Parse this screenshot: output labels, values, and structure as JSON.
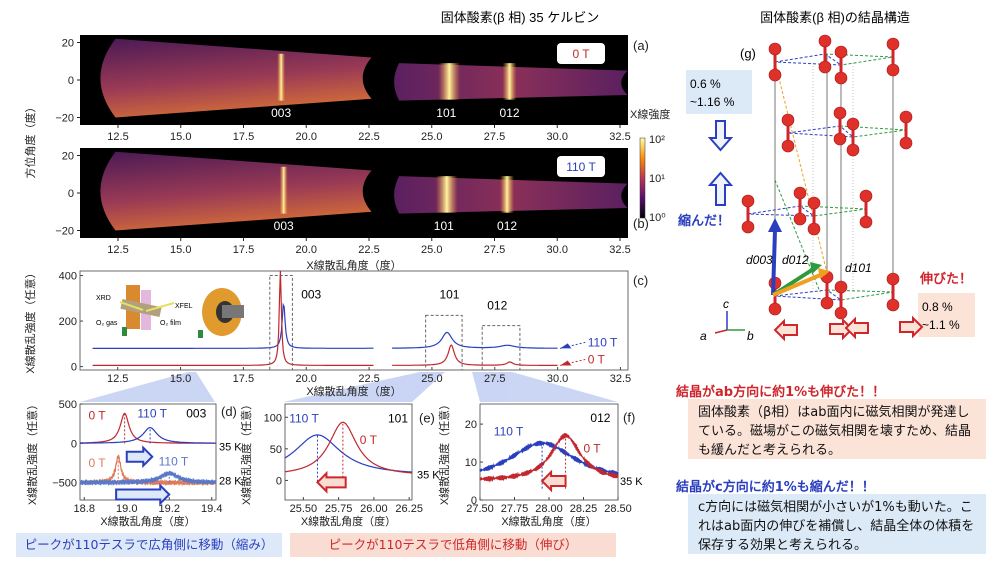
{
  "titles": {
    "left": "固体酸素(β 相) 35 ケルビン",
    "right": "固体酸素(β 相)の結晶構造"
  },
  "heatmap": {
    "y_label": "方位角度（度）",
    "x_label": "X線散乱角度（度）",
    "x_ticks": [
      "12.5",
      "15.0",
      "17.5",
      "20.0",
      "22.5",
      "25.0",
      "27.5",
      "30.0",
      "32.5"
    ],
    "y_ticks": [
      "20",
      "0",
      "−20"
    ],
    "colorbar_label": "X線強度",
    "colorbar_ticks": [
      "10²",
      "10¹",
      "10⁰"
    ],
    "panels": [
      {
        "label": "(a)",
        "field": "0 T",
        "field_color": "#c0282d",
        "peaks": [
          {
            "hkl": "003",
            "x": 19.0
          },
          {
            "hkl": "101",
            "x": 25.7
          },
          {
            "hkl": "012",
            "x": 28.1
          }
        ]
      },
      {
        "label": "(b)",
        "field": "110 T",
        "field_color": "#2a3fbf",
        "peaks": [
          {
            "hkl": "003",
            "x": 19.1
          },
          {
            "hkl": "101",
            "x": 25.6
          },
          {
            "hkl": "012",
            "x": 28.0
          }
        ]
      }
    ]
  },
  "chart_data": [
    {
      "id": "c",
      "type": "line",
      "panel_label": "(c)",
      "xlabel": "X線散乱角度（度）",
      "ylabel": "X線散乱強度（任意）",
      "xlim": [
        11.0,
        32.8
      ],
      "ylim": [
        -15,
        420
      ],
      "x_ticks": [
        "12.5",
        "15.0",
        "17.5",
        "20.0",
        "22.5",
        "25.0",
        "27.5",
        "30.0",
        "32.5"
      ],
      "y_ticks": [
        "0",
        "200",
        "400"
      ],
      "x_gap": [
        22.7,
        23.4
      ],
      "peak_labels": [
        "003",
        "101",
        "012"
      ],
      "inset_labels": {
        "xrd": "XRD",
        "xfel": "XFEL",
        "gas": "O₂ gas",
        "film": "O₂ film"
      },
      "series": [
        {
          "name": "110 T",
          "color": "#2a3fbf",
          "baseline": 80,
          "peaks": [
            {
              "x": 19.1,
              "h": 200,
              "w": 0.07
            },
            {
              "x": 25.6,
              "h": 70,
              "w": 0.25
            },
            {
              "x": 28.0,
              "h": 13,
              "w": 0.35
            }
          ]
        },
        {
          "name": "0 T",
          "color": "#c0282d",
          "baseline": 5,
          "peaks": [
            {
              "x": 18.97,
              "h": 420,
              "w": 0.05
            },
            {
              "x": 25.77,
              "h": 90,
              "w": 0.15
            },
            {
              "x": 28.1,
              "h": 15,
              "w": 0.15
            }
          ]
        }
      ]
    },
    {
      "id": "d",
      "type": "line",
      "panel_label": "(d)",
      "hkl": "003",
      "xlabel": "X線散乱角度（度）",
      "ylabel": "X線散乱強度（任意）",
      "xlim": [
        18.78,
        19.42
      ],
      "ylim": [
        -720,
        500
      ],
      "x_ticks": [
        "18.8",
        "19.0",
        "19.2",
        "19.4"
      ],
      "y_ticks": [
        "500",
        "0",
        "−500"
      ],
      "temperatures": [
        "35 K",
        "28 K"
      ],
      "series": [
        {
          "name": "0 T",
          "temp": "35 K",
          "color": "#c0282d",
          "baseline": 0,
          "peaks": [
            {
              "x": 18.99,
              "h": 380,
              "w": 0.025
            }
          ]
        },
        {
          "name": "110 T",
          "temp": "35 K",
          "color": "#2a3fbf",
          "baseline": 0,
          "peaks": [
            {
              "x": 19.11,
              "h": 200,
              "w": 0.04
            }
          ]
        },
        {
          "name": "0 T",
          "temp": "28 K",
          "color": "#e07a5a",
          "baseline": -500,
          "peaks": [
            {
              "x": 18.96,
              "h": 330,
              "w": 0.015
            }
          ]
        },
        {
          "name": "110 T",
          "temp": "28 K",
          "color": "#5a78c8",
          "baseline": -500,
          "peaks": [
            {
              "x": 19.2,
              "h": 120,
              "w": 0.05
            }
          ]
        }
      ]
    },
    {
      "id": "e",
      "type": "line",
      "panel_label": "(e)",
      "hkl": "101",
      "xlabel": "X線散乱角度（度）",
      "ylabel": "X線散乱強度（任意）",
      "xlim": [
        25.37,
        26.27
      ],
      "ylim": [
        -31,
        121
      ],
      "x_ticks": [
        "25.50",
        "25.75",
        "26.00",
        "26.25"
      ],
      "y_ticks": [
        "100",
        "50",
        "0"
      ],
      "temperature": "35 K",
      "series": [
        {
          "name": "110 T",
          "color": "#2a3fbf",
          "baseline": 8,
          "peaks": [
            {
              "x": 25.6,
              "h": 64,
              "w": 0.2
            }
          ]
        },
        {
          "name": "0 T",
          "color": "#c0282d",
          "baseline": 7,
          "peaks": [
            {
              "x": 25.78,
              "h": 85,
              "w": 0.12
            }
          ]
        }
      ]
    },
    {
      "id": "f",
      "type": "line",
      "panel_label": "(f)",
      "hkl": "012",
      "xlabel": "X線散乱角度（度）",
      "ylabel": "X線散乱強度（任意）",
      "xlim": [
        27.5,
        28.5
      ],
      "ylim": [
        0,
        25.3
      ],
      "x_ticks": [
        "27.50",
        "27.75",
        "28.00",
        "28.25",
        "28.50"
      ],
      "y_ticks": [
        "20",
        "10",
        "0"
      ],
      "temperature": "35 K",
      "series": [
        {
          "name": "110 T",
          "color": "#2a3fbf",
          "baseline": 4.5,
          "peaks": [
            {
              "x": 27.95,
              "h": 10.5,
              "w": 0.3
            }
          ]
        },
        {
          "name": "0 T",
          "color": "#c0282d",
          "baseline": 5,
          "peaks": [
            {
              "x": 28.12,
              "h": 12,
              "w": 0.13
            }
          ]
        }
      ]
    }
  ],
  "banners": {
    "blue": "ピークが110テスラで広角側に移動（縮み）",
    "red": "ピークが110テスラで低角側に移動（伸び）"
  },
  "crystal": {
    "label": "(g)",
    "shrink_box": [
      "0.6 %",
      "~1.16 %"
    ],
    "shrink_label": "縮んだ！",
    "stretch_label": "伸びた！",
    "stretch_box": [
      "0.8 %",
      "~1.1 %"
    ],
    "d_labels": [
      "d003",
      "d012",
      "d101"
    ],
    "axes": [
      "c",
      "a",
      "b"
    ]
  },
  "notes": [
    {
      "heading": "結晶がab方向に約1%も伸びた！！",
      "heading_color": "#d0262b",
      "bg": "#fbe3d8",
      "body": "固体酸素（β相）はab面内に磁気相関が発達している。磁場がこの磁気相関を壊すため、結晶も緩んだと考えられる。"
    },
    {
      "heading": "結晶がc方向に約1%も縮んだ！！",
      "heading_color": "#2a3fbf",
      "bg": "#dce9f7",
      "body": "c方向には磁気相関が小さいが1%も動いた。これはab面内の伸びを補償し、結晶全体の体積を保存する効果と考えられる。"
    }
  ],
  "colors": {
    "red": "#c0282d",
    "blue": "#2a3fbf",
    "green": "#2e9a3e",
    "orange": "#f0a020"
  }
}
